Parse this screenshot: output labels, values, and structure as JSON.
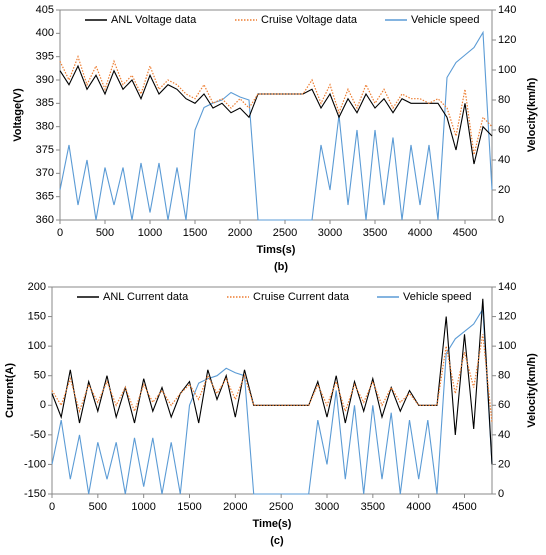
{
  "chart_data": [
    {
      "type": "line",
      "xlabel": "Tims(s)",
      "ylabel": "Voltage(V)",
      "y2label": "Velocity(km/h)",
      "caption": "(b)",
      "x": [
        0,
        100,
        200,
        300,
        400,
        500,
        600,
        700,
        800,
        900,
        1000,
        1100,
        1200,
        1300,
        1400,
        1500,
        1600,
        1700,
        1800,
        1900,
        2000,
        2100,
        2200,
        2300,
        2400,
        2500,
        2600,
        2700,
        2800,
        2900,
        3000,
        3100,
        3200,
        3300,
        3400,
        3500,
        3600,
        3700,
        3800,
        3900,
        4000,
        4100,
        4200,
        4300,
        4400,
        4500,
        4600,
        4700,
        4800
      ],
      "xlim": [
        0,
        4800
      ],
      "xticks": [
        0,
        500,
        1000,
        1500,
        2000,
        2500,
        3000,
        3500,
        4000,
        4500
      ],
      "ylim": [
        360,
        405
      ],
      "yticks": [
        360,
        365,
        370,
        375,
        380,
        385,
        390,
        395,
        400,
        405
      ],
      "y2lim": [
        0,
        140
      ],
      "y2ticks": [
        0,
        20,
        40,
        60,
        80,
        100,
        120,
        140
      ],
      "legend": "top",
      "series": [
        {
          "name": "ANL Voltage data",
          "color": "#000000",
          "style": "solid",
          "values": [
            392,
            389,
            393,
            388,
            391,
            387,
            392,
            388,
            390,
            386,
            391,
            387,
            389,
            388,
            386,
            385,
            387,
            384,
            385,
            383,
            384,
            382,
            387,
            387,
            387,
            387,
            387,
            387,
            388,
            384,
            387,
            382,
            386,
            383,
            387,
            384,
            386,
            383,
            386,
            385,
            385,
            385,
            385,
            382,
            375,
            385,
            372,
            380,
            378
          ]
        },
        {
          "name": "Cruise Voltage data",
          "color": "#ed7d31",
          "style": "dotted",
          "values": [
            394,
            390,
            395,
            389,
            393,
            388,
            394,
            389,
            391,
            387,
            393,
            388,
            390,
            389,
            387,
            386,
            389,
            385,
            386,
            384,
            386,
            384,
            387,
            387,
            387,
            387,
            387,
            387,
            390,
            385,
            389,
            383,
            388,
            384,
            389,
            385,
            388,
            384,
            387,
            386,
            386,
            385,
            386,
            384,
            378,
            388,
            374,
            382,
            380
          ]
        },
        {
          "name": "Vehicle speed",
          "color": "#5b9bd5",
          "style": "solid",
          "axis": "y2",
          "values": [
            20,
            50,
            10,
            40,
            0,
            35,
            10,
            35,
            0,
            38,
            5,
            38,
            0,
            35,
            0,
            60,
            75,
            78,
            80,
            85,
            82,
            80,
            0,
            0,
            0,
            0,
            0,
            0,
            0,
            50,
            20,
            70,
            10,
            60,
            0,
            60,
            10,
            55,
            0,
            50,
            10,
            50,
            0,
            95,
            105,
            110,
            115,
            125,
            20
          ]
        }
      ]
    },
    {
      "type": "line",
      "xlabel": "Time(s)",
      "ylabel": "Current(A)",
      "y2label": "Velocity(km/h)",
      "caption": "(c)",
      "x": [
        0,
        100,
        200,
        300,
        400,
        500,
        600,
        700,
        800,
        900,
        1000,
        1100,
        1200,
        1300,
        1400,
        1500,
        1600,
        1700,
        1800,
        1900,
        2000,
        2100,
        2200,
        2300,
        2400,
        2500,
        2600,
        2700,
        2800,
        2900,
        3000,
        3100,
        3200,
        3300,
        3400,
        3500,
        3600,
        3700,
        3800,
        3900,
        4000,
        4100,
        4200,
        4300,
        4400,
        4500,
        4600,
        4700,
        4800
      ],
      "xlim": [
        0,
        4800
      ],
      "xticks": [
        0,
        500,
        1000,
        1500,
        2000,
        2500,
        3000,
        3500,
        4000,
        4500
      ],
      "ylim": [
        -150,
        200
      ],
      "yticks": [
        -150,
        -100,
        -50,
        0,
        50,
        100,
        150,
        200
      ],
      "y2lim": [
        0,
        140
      ],
      "y2ticks": [
        0,
        20,
        40,
        60,
        80,
        100,
        120,
        140
      ],
      "legend": "top",
      "series": [
        {
          "name": "ANL Current data",
          "color": "#000000",
          "style": "solid",
          "values": [
            20,
            -20,
            60,
            -30,
            40,
            -10,
            50,
            -20,
            30,
            -30,
            45,
            -10,
            30,
            -20,
            20,
            40,
            -30,
            60,
            10,
            50,
            -20,
            60,
            0,
            0,
            0,
            0,
            0,
            0,
            0,
            40,
            -20,
            50,
            -30,
            40,
            -10,
            45,
            -20,
            30,
            -10,
            25,
            0,
            0,
            0,
            150,
            -50,
            120,
            -40,
            180,
            -100
          ]
        },
        {
          "name": "Cruise Current data",
          "color": "#ed7d31",
          "style": "dotted",
          "values": [
            25,
            0,
            45,
            -10,
            35,
            5,
            40,
            0,
            30,
            -10,
            35,
            5,
            25,
            0,
            20,
            35,
            10,
            50,
            20,
            45,
            10,
            50,
            0,
            0,
            0,
            0,
            0,
            0,
            0,
            35,
            0,
            40,
            -10,
            35,
            5,
            40,
            0,
            30,
            5,
            20,
            0,
            0,
            0,
            100,
            20,
            90,
            30,
            120,
            -30
          ]
        },
        {
          "name": "Vehicle speed",
          "color": "#5b9bd5",
          "style": "solid",
          "axis": "y2",
          "values": [
            20,
            50,
            10,
            40,
            0,
            35,
            10,
            35,
            0,
            38,
            5,
            38,
            0,
            35,
            0,
            60,
            75,
            78,
            80,
            85,
            82,
            80,
            0,
            0,
            0,
            0,
            0,
            0,
            0,
            50,
            20,
            70,
            10,
            60,
            0,
            60,
            10,
            55,
            0,
            50,
            10,
            50,
            0,
            95,
            105,
            110,
            115,
            125,
            20
          ]
        }
      ]
    }
  ]
}
